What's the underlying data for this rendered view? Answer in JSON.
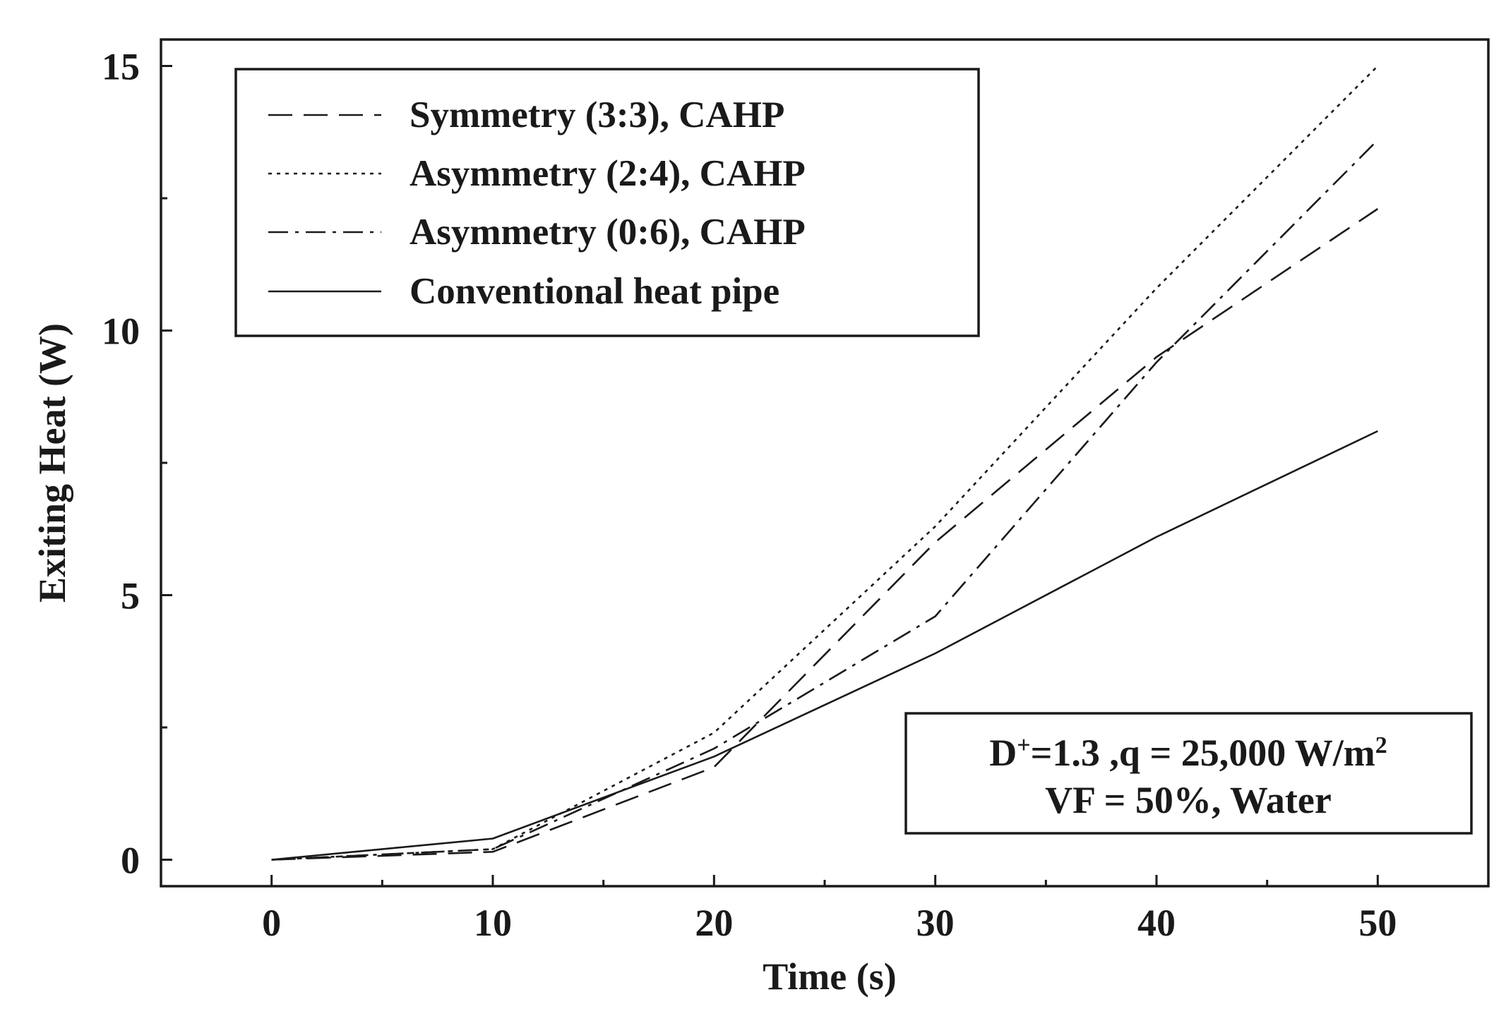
{
  "chart_data": {
    "type": "line",
    "title": "",
    "xlabel": "Time (s)",
    "ylabel": "Exiting Heat (W)",
    "xlim": [
      -5,
      55
    ],
    "ylim": [
      -0.5,
      15.5
    ],
    "xticks": [
      0,
      10,
      20,
      30,
      40,
      50
    ],
    "xtick_labels": [
      "0",
      "10",
      "20",
      "30",
      "40",
      "50"
    ],
    "x_minor_ticks": [
      5,
      15,
      25,
      35,
      45
    ],
    "yticks": [
      0,
      5,
      10,
      15
    ],
    "ytick_labels": [
      "0",
      "5",
      "10",
      "15"
    ],
    "y_minor_ticks": [
      2.5,
      7.5,
      12.5
    ],
    "grid": false,
    "legend_position": "top-left",
    "x": [
      0,
      10,
      20,
      30,
      40,
      50
    ],
    "series": [
      {
        "name": "Symmetry (3:3), CAHP",
        "style": "dashed",
        "values": [
          0,
          0.15,
          1.75,
          6.0,
          9.5,
          12.3
        ]
      },
      {
        "name": "Asymmetry (2:4), CAHP",
        "style": "dotted",
        "values": [
          0,
          0.2,
          2.4,
          6.3,
          10.8,
          15.0
        ]
      },
      {
        "name": "Asymmetry (0:6), CAHP",
        "style": "dashdot",
        "values": [
          0,
          0.2,
          2.1,
          4.6,
          9.4,
          13.6
        ]
      },
      {
        "name": "Conventional heat pipe",
        "style": "solid",
        "values": [
          0,
          0.4,
          1.95,
          3.9,
          6.1,
          8.1
        ]
      }
    ],
    "annotation": {
      "line1_prefix": "D",
      "line1_sup": "+",
      "line1_main": "=1.3 ,q = 25,000 W/m",
      "line1_exp": "2",
      "line2": "VF = 50%, Water",
      "position": "bottom-right"
    }
  }
}
